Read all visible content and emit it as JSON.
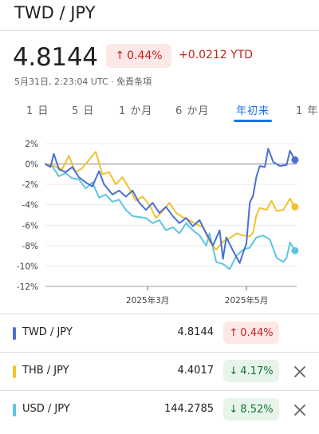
{
  "header": {
    "title": "TWD / JPY"
  },
  "quote": {
    "price": "4.8144",
    "change_pct": "0.44%",
    "change_arrow": "↑",
    "ytd": "+0.0212 YTD",
    "timestamp": "5月31日, 2:23:04 UTC · 免責条項"
  },
  "ranges": {
    "tabs": [
      "1 日",
      "5 日",
      "1 か月",
      "6 か月",
      "年初来",
      "1 年"
    ],
    "selected": "年初来"
  },
  "colors": {
    "accent": "#1a73e8",
    "twd": "#4a6fd4",
    "thb": "#f2c12e",
    "usd": "#5ec4e2",
    "up": "#c5221f",
    "down": "#137333"
  },
  "legend": [
    {
      "name": "TWD / JPY",
      "value": "4.8144",
      "change": "0.44%",
      "arrow": "↑",
      "direction": "up",
      "color": "#4a6fd4",
      "removable": false
    },
    {
      "name": "THB / JPY",
      "value": "4.4017",
      "change": "4.17%",
      "arrow": "↓",
      "direction": "down",
      "color": "#f2c12e",
      "removable": true
    },
    {
      "name": "USD / JPY",
      "value": "144.2785",
      "change": "8.52%",
      "arrow": "↓",
      "direction": "down",
      "color": "#5ec4e2",
      "removable": true
    }
  ],
  "chart_data": {
    "type": "line",
    "ylim": [
      -12,
      2
    ],
    "y_ticks": [
      "2%",
      "0%",
      "-2%",
      "-4%",
      "-6%",
      "-8%",
      "-10%",
      "-12%"
    ],
    "x_ticks": [
      "2025年3月",
      "2025年5月"
    ],
    "x_range_days": [
      0,
      150
    ],
    "x_tick_days": [
      61,
      120
    ],
    "grid": true,
    "series": [
      {
        "name": "TWD / JPY",
        "color": "#4a6fd4",
        "points": [
          [
            0,
            0
          ],
          [
            3,
            -0.3
          ],
          [
            5,
            1
          ],
          [
            8,
            -0.5
          ],
          [
            12,
            -0.8
          ],
          [
            16,
            -0.3
          ],
          [
            20,
            -1.3
          ],
          [
            24,
            -1.8
          ],
          [
            28,
            -2.2
          ],
          [
            32,
            -0.7
          ],
          [
            35,
            -2
          ],
          [
            40,
            -3
          ],
          [
            44,
            -2.6
          ],
          [
            48,
            -3.2
          ],
          [
            52,
            -2.6
          ],
          [
            56,
            -3.8
          ],
          [
            60,
            -4.5
          ],
          [
            64,
            -3.8
          ],
          [
            68,
            -4.8
          ],
          [
            72,
            -4.2
          ],
          [
            76,
            -5.1
          ],
          [
            80,
            -5.8
          ],
          [
            84,
            -5.3
          ],
          [
            88,
            -6.1
          ],
          [
            92,
            -5.5
          ],
          [
            96,
            -6.8
          ],
          [
            100,
            -8
          ],
          [
            104,
            -6.5
          ],
          [
            106,
            -9.3
          ],
          [
            108,
            -7.2
          ],
          [
            112,
            -8.5
          ],
          [
            116,
            -9.7
          ],
          [
            118,
            -8.7
          ],
          [
            120,
            -7.8
          ],
          [
            122,
            -3.8
          ],
          [
            124,
            -3.1
          ],
          [
            126,
            -1.2
          ],
          [
            128,
            -0.2
          ],
          [
            131,
            -0.3
          ],
          [
            133,
            1.5
          ],
          [
            136,
            0.2
          ],
          [
            140,
            -0.2
          ],
          [
            144,
            -0.1
          ],
          [
            146,
            1.3
          ],
          [
            149,
            0.4
          ]
        ]
      },
      {
        "name": "THB / JPY",
        "color": "#f2c12e",
        "points": [
          [
            0,
            0
          ],
          [
            5,
            -0.2
          ],
          [
            10,
            -0.5
          ],
          [
            14,
            0.8
          ],
          [
            18,
            -0.8
          ],
          [
            22,
            -0.4
          ],
          [
            26,
            0.4
          ],
          [
            30,
            1.2
          ],
          [
            34,
            -1
          ],
          [
            38,
            -0.8
          ],
          [
            42,
            -2
          ],
          [
            46,
            -1.3
          ],
          [
            50,
            -2.4
          ],
          [
            54,
            -3.6
          ],
          [
            58,
            -3.2
          ],
          [
            62,
            -4
          ],
          [
            66,
            -5.3
          ],
          [
            70,
            -4.6
          ],
          [
            74,
            -3.8
          ],
          [
            78,
            -4.8
          ],
          [
            82,
            -5.2
          ],
          [
            86,
            -5.5
          ],
          [
            90,
            -5.9
          ],
          [
            94,
            -6.2
          ],
          [
            98,
            -7.6
          ],
          [
            102,
            -8.4
          ],
          [
            106,
            -7.6
          ],
          [
            110,
            -7.3
          ],
          [
            114,
            -6.8
          ],
          [
            118,
            -7
          ],
          [
            122,
            -7.1
          ],
          [
            124,
            -6.7
          ],
          [
            126,
            -5
          ],
          [
            128,
            -4.3
          ],
          [
            132,
            -4.5
          ],
          [
            135,
            -3.6
          ],
          [
            138,
            -4.6
          ],
          [
            142,
            -4.5
          ],
          [
            146,
            -3.4
          ],
          [
            149,
            -4.2
          ]
        ]
      },
      {
        "name": "USD / JPY",
        "color": "#5ec4e2",
        "points": [
          [
            0,
            0
          ],
          [
            4,
            -0.2
          ],
          [
            8,
            -1.2
          ],
          [
            12,
            -0.9
          ],
          [
            16,
            -1.4
          ],
          [
            20,
            -1.5
          ],
          [
            24,
            -2.4
          ],
          [
            28,
            -1.8
          ],
          [
            32,
            -3.3
          ],
          [
            36,
            -3
          ],
          [
            40,
            -3.7
          ],
          [
            44,
            -3.5
          ],
          [
            48,
            -4.5
          ],
          [
            52,
            -5.1
          ],
          [
            56,
            -5.2
          ],
          [
            60,
            -5.3
          ],
          [
            64,
            -5.8
          ],
          [
            68,
            -5.5
          ],
          [
            72,
            -6.5
          ],
          [
            76,
            -6.2
          ],
          [
            80,
            -6.8
          ],
          [
            84,
            -5.8
          ],
          [
            88,
            -6.5
          ],
          [
            92,
            -7
          ],
          [
            96,
            -8
          ],
          [
            98,
            -6.8
          ],
          [
            102,
            -9.6
          ],
          [
            106,
            -9.8
          ],
          [
            110,
            -10.3
          ],
          [
            114,
            -9
          ],
          [
            118,
            -8.4
          ],
          [
            122,
            -8.2
          ],
          [
            126,
            -7.2
          ],
          [
            130,
            -7
          ],
          [
            134,
            -7.4
          ],
          [
            138,
            -9.2
          ],
          [
            142,
            -9.6
          ],
          [
            144,
            -9.2
          ],
          [
            146,
            -7.7
          ],
          [
            149,
            -8.5
          ]
        ]
      }
    ]
  }
}
